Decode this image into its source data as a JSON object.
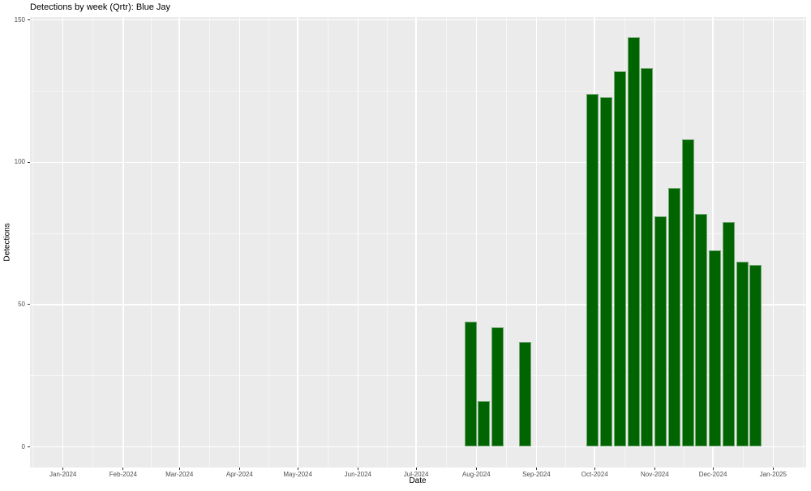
{
  "chart_data": {
    "type": "bar",
    "title": "Detections by week (Qrtr): Blue Jay",
    "xlabel": "Date",
    "ylabel": "Detections",
    "x_unit": "week_start_date",
    "bar_width_days": 7,
    "grid": true,
    "legend": "none",
    "x": [
      "2024-07-29",
      "2024-08-05",
      "2024-08-12",
      "2024-08-26",
      "2024-09-30",
      "2024-10-07",
      "2024-10-14",
      "2024-10-21",
      "2024-10-28",
      "2024-11-04",
      "2024-11-11",
      "2024-11-18",
      "2024-11-25",
      "2024-12-02",
      "2024-12-09",
      "2024-12-16",
      "2024-12-23"
    ],
    "values": [
      44,
      16,
      42,
      37,
      124,
      123,
      132,
      144,
      133,
      81,
      91,
      108,
      82,
      69,
      79,
      65,
      64
    ],
    "x_ticks": [
      {
        "date": "2024-01-01",
        "label": "Jan-2024"
      },
      {
        "date": "2024-02-01",
        "label": "Feb-2024"
      },
      {
        "date": "2024-03-01",
        "label": "Mar-2024"
      },
      {
        "date": "2024-04-01",
        "label": "Apr-2024"
      },
      {
        "date": "2024-05-01",
        "label": "May-2024"
      },
      {
        "date": "2024-06-01",
        "label": "Jun-2024"
      },
      {
        "date": "2024-07-01",
        "label": "Jul-2024"
      },
      {
        "date": "2024-08-01",
        "label": "Aug-2024"
      },
      {
        "date": "2024-09-01",
        "label": "Sep-2024"
      },
      {
        "date": "2024-10-01",
        "label": "Oct-2024"
      },
      {
        "date": "2024-11-01",
        "label": "Nov-2024"
      },
      {
        "date": "2024-12-01",
        "label": "Dec-2024"
      },
      {
        "date": "2025-01-01",
        "label": "Jan-2025"
      }
    ],
    "y_ticks": [
      0,
      50,
      100,
      150
    ],
    "y_minor_ticks": [
      25,
      75,
      125
    ],
    "ylim": [
      0,
      150
    ],
    "xlim": [
      "2023-12-15",
      "2025-01-18"
    ],
    "colors": {
      "bar_fill": "#006400",
      "panel_bg": "#EBEBEB",
      "grid": "#FFFFFF",
      "tick_label": "#4D4D4D",
      "tick_mark": "#333333",
      "text": "#000000",
      "figure_bg": "#FFFFFF"
    }
  }
}
